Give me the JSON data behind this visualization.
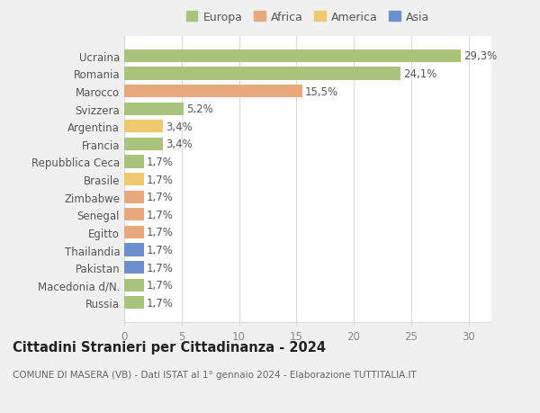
{
  "categories": [
    "Russia",
    "Macedonia d/N.",
    "Pakistan",
    "Thailandia",
    "Egitto",
    "Senegal",
    "Zimbabwe",
    "Brasile",
    "Repubblica Ceca",
    "Francia",
    "Argentina",
    "Svizzera",
    "Marocco",
    "Romania",
    "Ucraina"
  ],
  "values": [
    1.7,
    1.7,
    1.7,
    1.7,
    1.7,
    1.7,
    1.7,
    1.7,
    1.7,
    3.4,
    3.4,
    5.2,
    15.5,
    24.1,
    29.3
  ],
  "colors": [
    "#a8c47a",
    "#a8c47a",
    "#6b8fcf",
    "#6b8fcf",
    "#e8a87c",
    "#e8a87c",
    "#e8a87c",
    "#f0c870",
    "#a8c47a",
    "#a8c47a",
    "#f0c870",
    "#a8c47a",
    "#e8a87c",
    "#a8c47a",
    "#a8c47a"
  ],
  "labels": [
    "1,7%",
    "1,7%",
    "1,7%",
    "1,7%",
    "1,7%",
    "1,7%",
    "1,7%",
    "1,7%",
    "1,7%",
    "3,4%",
    "3,4%",
    "5,2%",
    "15,5%",
    "24,1%",
    "29,3%"
  ],
  "legend_order": [
    "Europa",
    "Africa",
    "America",
    "Asia"
  ],
  "legend_colors": {
    "Europa": "#a8c47a",
    "Africa": "#e8a87c",
    "America": "#f0c870",
    "Asia": "#6b8fcf"
  },
  "title": "Cittadini Stranieri per Cittadinanza - 2024",
  "subtitle": "COMUNE DI MASERA (VB) - Dati ISTAT al 1° gennaio 2024 - Elaborazione TUTTITALIA.IT",
  "xlim": [
    0,
    32
  ],
  "xticks": [
    0,
    5,
    10,
    15,
    20,
    25,
    30
  ],
  "bg_color": "#f0f0f0",
  "plot_bg_color": "#ffffff",
  "grid_color": "#d8d8d8",
  "bar_height": 0.72,
  "title_fontsize": 10.5,
  "subtitle_fontsize": 7.5,
  "tick_fontsize": 8.5,
  "label_fontsize": 8.5,
  "legend_fontsize": 9
}
